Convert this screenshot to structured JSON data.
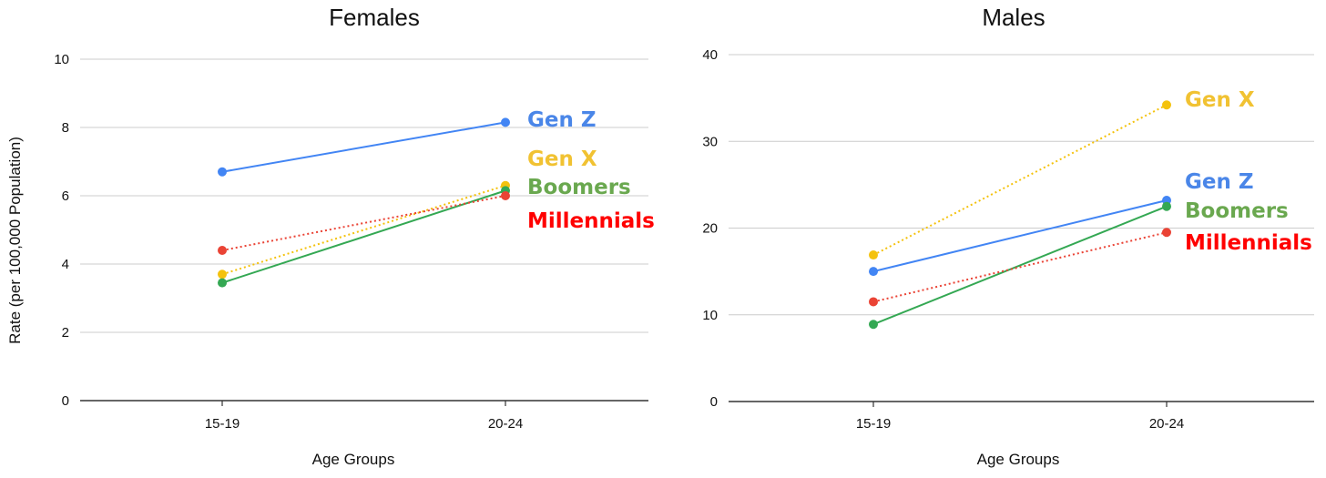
{
  "y_axis_label": "Rate (per 100,000 Population)",
  "chart_data": [
    {
      "type": "line",
      "title": "Females",
      "xlabel": "Age Groups",
      "ylabel": "Rate (per 100,000 Population)",
      "categories": [
        "15-19",
        "20-24"
      ],
      "ylim": [
        0,
        10
      ],
      "yticks": [
        0,
        2,
        4,
        6,
        8,
        10
      ],
      "grid": true,
      "series": [
        {
          "name": "Gen Z",
          "values": [
            6.7,
            8.15
          ],
          "color": "#4285f4",
          "dash": "solid"
        },
        {
          "name": "Gen X",
          "values": [
            3.7,
            6.3
          ],
          "color": "#f4c20d",
          "dash": "dotted"
        },
        {
          "name": "Boomers",
          "values": [
            3.45,
            6.15
          ],
          "color": "#34a853",
          "dash": "solid"
        },
        {
          "name": "Millennials",
          "values": [
            4.4,
            6.0
          ],
          "color": "#ea4335",
          "dash": "dotted"
        }
      ],
      "label_colors": {
        "Gen Z": "#4a86e8",
        "Gen X": "#f1c232",
        "Boomers": "#6aa84f",
        "Millennials": "#ff0000"
      }
    },
    {
      "type": "line",
      "title": "Males",
      "xlabel": "Age Groups",
      "ylabel": "",
      "categories": [
        "15-19",
        "20-24"
      ],
      "ylim": [
        0,
        40
      ],
      "yticks": [
        0,
        10,
        20,
        30,
        40
      ],
      "grid": true,
      "series": [
        {
          "name": "Gen X",
          "values": [
            16.9,
            34.2
          ],
          "color": "#f4c20d",
          "dash": "dotted"
        },
        {
          "name": "Gen Z",
          "values": [
            15.0,
            23.2
          ],
          "color": "#4285f4",
          "dash": "solid"
        },
        {
          "name": "Boomers",
          "values": [
            8.9,
            22.5
          ],
          "color": "#34a853",
          "dash": "solid"
        },
        {
          "name": "Millennials",
          "values": [
            11.5,
            19.5
          ],
          "color": "#ea4335",
          "dash": "dotted"
        }
      ],
      "label_colors": {
        "Gen Z": "#4a86e8",
        "Gen X": "#f1c232",
        "Boomers": "#6aa84f",
        "Millennials": "#ff0000"
      }
    }
  ]
}
